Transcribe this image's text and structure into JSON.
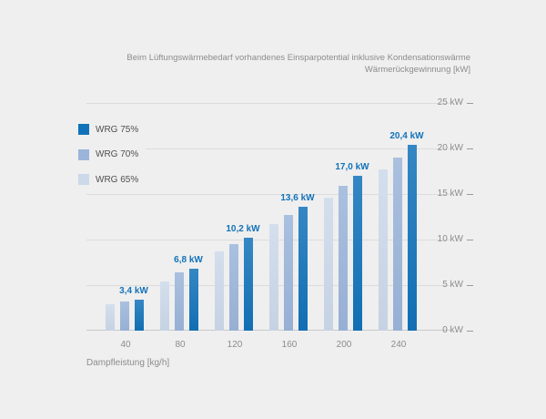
{
  "page": {
    "background": "#efefef"
  },
  "header": {
    "title_line1": "Beim Lüftungswärmebedarf vorhandenes Einsparpotential inklusive Kondensationswärme",
    "title_line2": "Wärmerückgewinnung [kW]"
  },
  "chart_data": {
    "type": "bar",
    "title": "Beim Lüftungswärmebedarf vorhandenes Einsparpotential inklusive Kondensationswärme Wärmerückgewinnung [kW]",
    "xlabel": "Dampfleistung [kg/h]",
    "ylabel": "kW",
    "categories": [
      "40",
      "80",
      "120",
      "160",
      "200",
      "240"
    ],
    "series": [
      {
        "name": "WRG 65%",
        "color": "#ccd9ea",
        "values": [
          2.9,
          5.4,
          8.7,
          11.7,
          14.6,
          17.7
        ]
      },
      {
        "name": "WRG 70%",
        "color": "#9bb5da",
        "values": [
          3.2,
          6.4,
          9.5,
          12.7,
          15.9,
          19.0
        ]
      },
      {
        "name": "WRG 75%",
        "color": "#1272b9",
        "values": [
          3.4,
          6.8,
          10.2,
          13.6,
          17.0,
          20.4
        ],
        "data_labels": [
          "3,4 kW",
          "6,8 kW",
          "10,2 kW",
          "13,6 kW",
          "17,0 kW",
          "20,4 kW"
        ]
      }
    ],
    "ylim": [
      0,
      25
    ],
    "ytick_step": 5,
    "ytick_labels": [
      "0 kW",
      "5 kW",
      "10 kW",
      "15 kW",
      "20 kW",
      "25 kW"
    ],
    "grid": true,
    "legend_position": "top-left",
    "legend": [
      {
        "label": "WRG 75%",
        "color": "#1272b9"
      },
      {
        "label": "WRG 70%",
        "color": "#9bb5da"
      },
      {
        "label": "WRG 65%",
        "color": "#ccd9ea"
      }
    ]
  },
  "colors": {
    "background": "#efefef",
    "gridline": "#dcdcdc",
    "axis_line": "#c9c9c9",
    "tick": "#9a9a9a",
    "label_text": "#8c8c8c",
    "legend_text": "#4f4f4f",
    "data_label": "#1272b9"
  }
}
